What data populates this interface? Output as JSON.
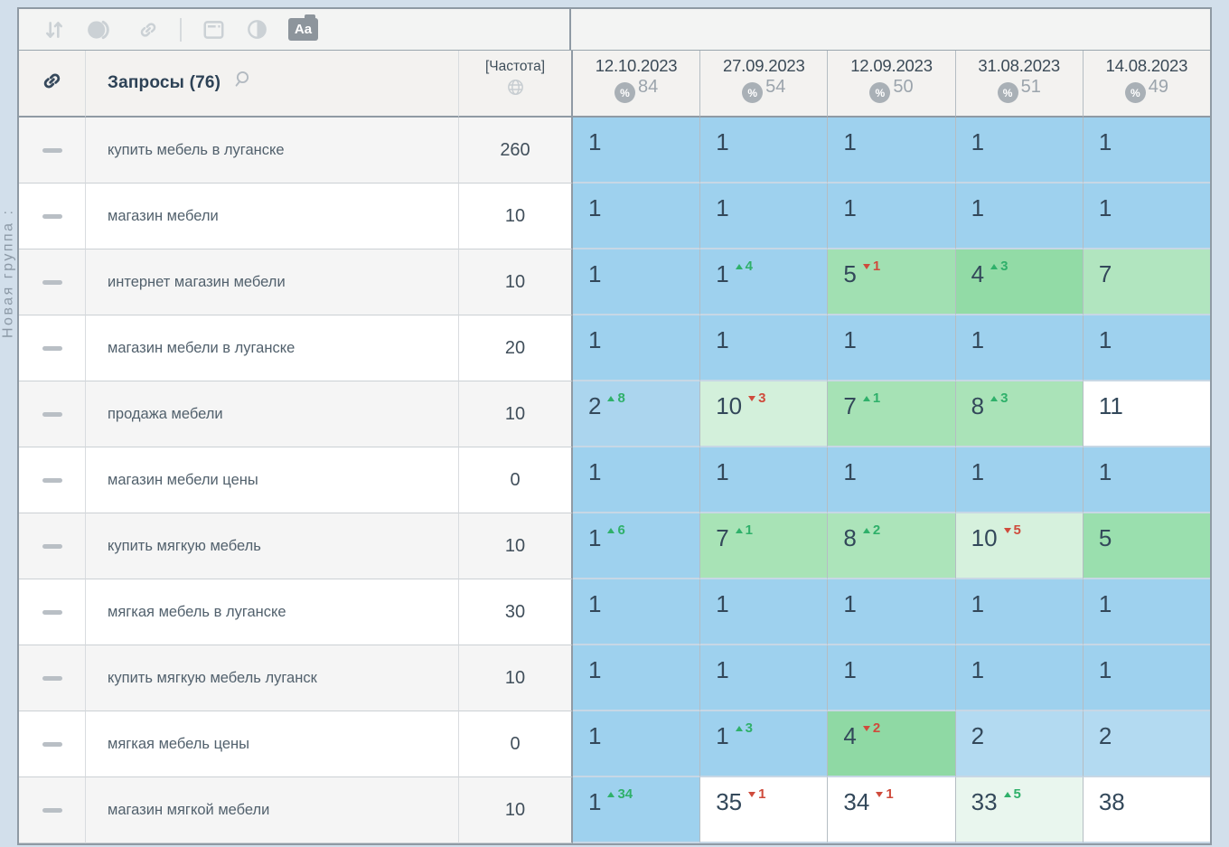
{
  "group": {
    "label": "Новая группа :"
  },
  "toolbar": {
    "icons": [
      "sort-icon",
      "snapshot-circle-icon",
      "link-icon",
      "divider",
      "window-icon",
      "contrast-icon",
      "text-case-button"
    ],
    "text_case_label": "Aa"
  },
  "header": {
    "queries_label": "Запросы",
    "queries_count": "(76)",
    "frequency_label": "[Частота]",
    "dates": [
      {
        "label": "12.10.2023",
        "coverage": "84"
      },
      {
        "label": "27.09.2023",
        "coverage": "54"
      },
      {
        "label": "12.09.2023",
        "coverage": "50"
      },
      {
        "label": "31.08.2023",
        "coverage": "51"
      },
      {
        "label": "14.08.2023",
        "coverage": "49"
      }
    ]
  },
  "colors": {
    "pos_blue": "#9ed1ee",
    "pos_blue_light": "#b3daf1",
    "delta_up": "#2fb06a",
    "delta_down": "#cf4b3c",
    "frame_border": "#8f9aa4"
  },
  "table": {
    "rows": [
      {
        "keyword": "купить мебель в луганске",
        "frequency": "260",
        "cells": [
          {
            "value": "1",
            "bg": "#9ed1ee"
          },
          {
            "value": "1",
            "bg": "#9ed1ee"
          },
          {
            "value": "1",
            "bg": "#9ed1ee"
          },
          {
            "value": "1",
            "bg": "#9ed1ee"
          },
          {
            "value": "1",
            "bg": "#9ed1ee"
          }
        ]
      },
      {
        "keyword": "магазин мебели",
        "frequency": "10",
        "cells": [
          {
            "value": "1",
            "bg": "#9ed1ee"
          },
          {
            "value": "1",
            "bg": "#9ed1ee"
          },
          {
            "value": "1",
            "bg": "#9ed1ee"
          },
          {
            "value": "1",
            "bg": "#9ed1ee"
          },
          {
            "value": "1",
            "bg": "#9ed1ee"
          }
        ]
      },
      {
        "keyword": "интернет магазин мебели",
        "frequency": "10",
        "cells": [
          {
            "value": "1",
            "bg": "#9ed1ee"
          },
          {
            "value": "1",
            "bg": "#9ed1ee",
            "delta": 4,
            "dir": "up"
          },
          {
            "value": "5",
            "bg": "#a1e0b2",
            "delta": 1,
            "dir": "down"
          },
          {
            "value": "4",
            "bg": "#92dba6",
            "delta": 3,
            "dir": "up"
          },
          {
            "value": "7",
            "bg": "#b1e5bf"
          }
        ]
      },
      {
        "keyword": "магазин мебели в луганске",
        "frequency": "20",
        "cells": [
          {
            "value": "1",
            "bg": "#9ed1ee"
          },
          {
            "value": "1",
            "bg": "#9ed1ee"
          },
          {
            "value": "1",
            "bg": "#9ed1ee"
          },
          {
            "value": "1",
            "bg": "#9ed1ee"
          },
          {
            "value": "1",
            "bg": "#9ed1ee"
          }
        ]
      },
      {
        "keyword": "продажа мебели",
        "frequency": "10",
        "cells": [
          {
            "value": "2",
            "bg": "#abd5ee",
            "delta": 8,
            "dir": "up"
          },
          {
            "value": "10",
            "bg": "#d3f0db",
            "delta": 3,
            "dir": "down"
          },
          {
            "value": "7",
            "bg": "#a6e2b5",
            "delta": 1,
            "dir": "up"
          },
          {
            "value": "8",
            "bg": "#aae3b8",
            "delta": 3,
            "dir": "up"
          },
          {
            "value": "11",
            "bg": "#ffffff"
          }
        ]
      },
      {
        "keyword": "магазин мебели цены",
        "frequency": "0",
        "cells": [
          {
            "value": "1",
            "bg": "#9ed1ee"
          },
          {
            "value": "1",
            "bg": "#9ed1ee"
          },
          {
            "value": "1",
            "bg": "#9ed1ee"
          },
          {
            "value": "1",
            "bg": "#9ed1ee"
          },
          {
            "value": "1",
            "bg": "#9ed1ee"
          }
        ]
      },
      {
        "keyword": "купить мягкую мебель",
        "frequency": "10",
        "cells": [
          {
            "value": "1",
            "bg": "#9ed1ee",
            "delta": 6,
            "dir": "up"
          },
          {
            "value": "7",
            "bg": "#a8e3b6",
            "delta": 1,
            "dir": "up"
          },
          {
            "value": "8",
            "bg": "#ace4ba",
            "delta": 2,
            "dir": "up"
          },
          {
            "value": "10",
            "bg": "#d6f1dd",
            "delta": 5,
            "dir": "down"
          },
          {
            "value": "5",
            "bg": "#9adfae"
          }
        ]
      },
      {
        "keyword": "мягкая мебель в луганске",
        "frequency": "30",
        "cells": [
          {
            "value": "1",
            "bg": "#9ed1ee"
          },
          {
            "value": "1",
            "bg": "#9ed1ee"
          },
          {
            "value": "1",
            "bg": "#9ed1ee"
          },
          {
            "value": "1",
            "bg": "#9ed1ee"
          },
          {
            "value": "1",
            "bg": "#9ed1ee"
          }
        ]
      },
      {
        "keyword": "купить мягкую мебель луганск",
        "frequency": "10",
        "cells": [
          {
            "value": "1",
            "bg": "#9ed1ee"
          },
          {
            "value": "1",
            "bg": "#9ed1ee"
          },
          {
            "value": "1",
            "bg": "#9ed1ee"
          },
          {
            "value": "1",
            "bg": "#9ed1ee"
          },
          {
            "value": "1",
            "bg": "#9ed1ee"
          }
        ]
      },
      {
        "keyword": "мягкая мебель цены",
        "frequency": "0",
        "cells": [
          {
            "value": "1",
            "bg": "#9ed1ee"
          },
          {
            "value": "1",
            "bg": "#9ed1ee",
            "delta": 3,
            "dir": "up"
          },
          {
            "value": "4",
            "bg": "#8fd9a4",
            "delta": 2,
            "dir": "down"
          },
          {
            "value": "2",
            "bg": "#b3daf1"
          },
          {
            "value": "2",
            "bg": "#b3daf1"
          }
        ]
      },
      {
        "keyword": "магазин мягкой мебели",
        "frequency": "10",
        "cells": [
          {
            "value": "1",
            "bg": "#9ed1ee",
            "delta": 34,
            "dir": "up"
          },
          {
            "value": "35",
            "bg": "#ffffff",
            "delta": 1,
            "dir": "down"
          },
          {
            "value": "34",
            "bg": "#ffffff",
            "delta": 1,
            "dir": "down"
          },
          {
            "value": "33",
            "bg": "#e9f6ee",
            "delta": 5,
            "dir": "up"
          },
          {
            "value": "38",
            "bg": "#ffffff"
          }
        ]
      }
    ]
  }
}
